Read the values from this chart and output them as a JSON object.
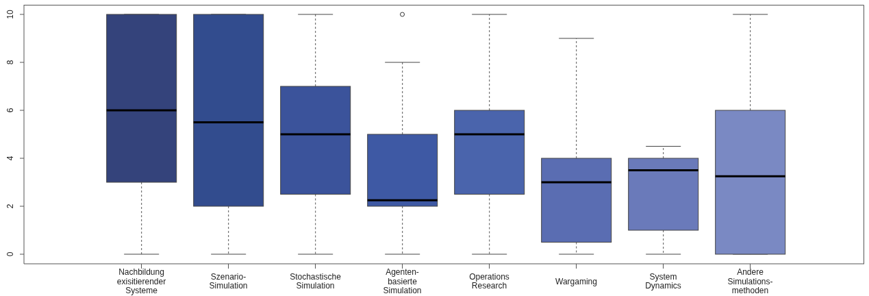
{
  "chart_data": {
    "type": "box",
    "categories": [
      "Nachbildung\nexisitierender\nSysteme",
      "Szenario-\nSimulation",
      "Stochastische\nSimulation",
      "Agenten-\nbasierte\nSimulation",
      "Operations\nResearch",
      "Wargaming",
      "System\nDynamics",
      "Andere\nSimulations-\nmethoden"
    ],
    "boxes": [
      {
        "low": 0,
        "q1": 3,
        "median": 6,
        "q3": 10,
        "high": 10
      },
      {
        "low": 0,
        "q1": 2,
        "median": 5.5,
        "q3": 10,
        "high": 10
      },
      {
        "low": 0,
        "q1": 2.5,
        "median": 5,
        "q3": 7,
        "high": 10
      },
      {
        "low": 0,
        "q1": 2,
        "median": 2.25,
        "q3": 5,
        "high": 8,
        "outliers": [
          10
        ]
      },
      {
        "low": 0,
        "q1": 2.5,
        "median": 5,
        "q3": 6,
        "high": 10
      },
      {
        "low": 0,
        "q1": 0.5,
        "median": 3,
        "q3": 4,
        "high": 9
      },
      {
        "low": 0,
        "q1": 1,
        "median": 3.5,
        "q3": 4,
        "high": 4.5
      },
      {
        "low": 0,
        "q1": 0,
        "median": 3.25,
        "q3": 6,
        "high": 10
      }
    ],
    "colors": [
      "#34437b",
      "#324c8e",
      "#3b539b",
      "#3e59a4",
      "#4a64ac",
      "#5a6db2",
      "#6a7aba",
      "#7a89c3"
    ],
    "ylim": [
      -0.4,
      10.4
    ],
    "yticks": [
      0,
      2,
      4,
      6,
      8,
      10
    ]
  }
}
